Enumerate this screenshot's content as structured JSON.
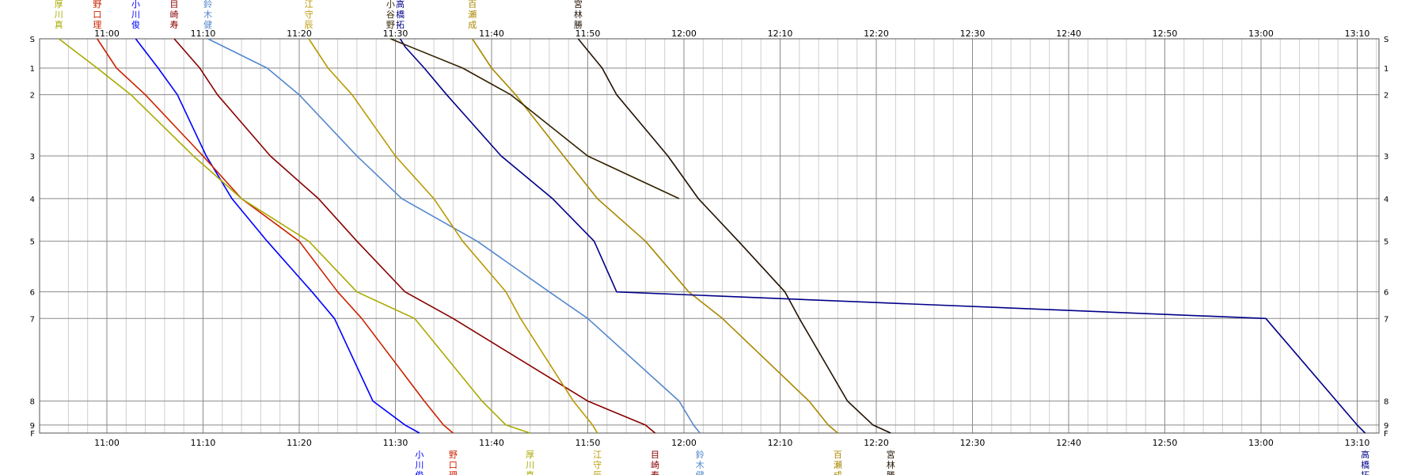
{
  "chart_data": {
    "type": "line",
    "title": "",
    "xlabel": "",
    "ylabel": "",
    "x_range": [
      "10:55",
      "13:12"
    ],
    "x_tick_labels": [
      "11:00",
      "11:10",
      "11:20",
      "11:30",
      "11:40",
      "11:50",
      "12:00",
      "12:10",
      "12:20",
      "12:30",
      "12:40",
      "12:50",
      "13:00",
      "13:10"
    ],
    "stations": [
      {
        "label": "S",
        "dist": 0
      },
      {
        "label": "1",
        "dist": 11
      },
      {
        "label": "2",
        "dist": 21
      },
      {
        "label": "3",
        "dist": 44
      },
      {
        "label": "4",
        "dist": 60
      },
      {
        "label": "5",
        "dist": 76
      },
      {
        "label": "6",
        "dist": 95
      },
      {
        "label": "7",
        "dist": 105
      },
      {
        "label": "8",
        "dist": 136
      },
      {
        "label": "9",
        "dist": 145
      },
      {
        "label": "F",
        "dist": 148
      }
    ],
    "grid": true,
    "series": [
      {
        "name": "小川俊",
        "top_name": "小川俊",
        "bottom_name": "小川俊",
        "color": "#0000ff",
        "points": [
          [
            "11:03:00",
            0
          ],
          [
            "11:05:20",
            11
          ],
          [
            "11:07:20",
            21
          ],
          [
            "11:10:20",
            44
          ],
          [
            "11:13:00",
            60
          ],
          [
            "11:16:40",
            76
          ],
          [
            "11:21:20",
            95
          ],
          [
            "11:23:40",
            105
          ],
          [
            "11:27:40",
            136
          ],
          [
            "11:31:00",
            145
          ],
          [
            "11:32:30",
            148
          ]
        ]
      },
      {
        "name": "野口理",
        "top_name": "野口理",
        "bottom_name": "野口理",
        "color": "#cc2200",
        "points": [
          [
            "10:59:00",
            0
          ],
          [
            "11:01:00",
            11
          ],
          [
            "11:04:00",
            21
          ],
          [
            "11:10:00",
            44
          ],
          [
            "11:14:00",
            60
          ],
          [
            "11:20:00",
            76
          ],
          [
            "11:24:00",
            95
          ],
          [
            "11:26:30",
            105
          ],
          [
            "11:33:00",
            136
          ],
          [
            "11:35:00",
            145
          ],
          [
            "11:36:00",
            148
          ]
        ]
      },
      {
        "name": "目崎寿",
        "top_name": "目崎寿",
        "bottom_name": "目崎寿",
        "color": "#880000",
        "points": [
          [
            "11:07:00",
            0
          ],
          [
            "11:09:40",
            11
          ],
          [
            "11:11:30",
            21
          ],
          [
            "11:17:00",
            44
          ],
          [
            "11:22:00",
            60
          ],
          [
            "11:26:00",
            76
          ],
          [
            "11:31:00",
            95
          ],
          [
            "11:36:00",
            105
          ],
          [
            "11:50:00",
            136
          ],
          [
            "11:56:00",
            145
          ],
          [
            "11:57:00",
            148
          ]
        ]
      },
      {
        "name": "鈴木健",
        "top_name": "鈴木健",
        "bottom_name": "鈴木健",
        "color": "#5588cc",
        "points": [
          [
            "11:10:30",
            0
          ],
          [
            "11:16:40",
            11
          ],
          [
            "11:20:00",
            21
          ],
          [
            "11:26:00",
            44
          ],
          [
            "11:30:40",
            60
          ],
          [
            "11:38:30",
            76
          ],
          [
            "11:46:00",
            95
          ],
          [
            "11:50:00",
            105
          ],
          [
            "11:59:30",
            136
          ],
          [
            "12:01:00",
            145
          ],
          [
            "12:01:40",
            148
          ]
        ]
      },
      {
        "name": "厚川真",
        "top_name": "厚川真",
        "bottom_name": "厚川真",
        "color": "#aaaa00",
        "points": [
          [
            "10:55:00",
            0
          ],
          [
            "10:59:00",
            11
          ],
          [
            "11:02:30",
            21
          ],
          [
            "11:09:00",
            44
          ],
          [
            "11:14:00",
            60
          ],
          [
            "11:21:00",
            76
          ],
          [
            "11:26:00",
            95
          ],
          [
            "11:32:00",
            105
          ],
          [
            "11:39:00",
            136
          ],
          [
            "11:41:30",
            145
          ],
          [
            "11:44:00",
            148
          ]
        ]
      },
      {
        "name": "江守辰",
        "top_name": "江守辰",
        "bottom_name": "江守辰",
        "color": "#bb9900",
        "points": [
          [
            "11:21:00",
            0
          ],
          [
            "11:23:00",
            11
          ],
          [
            "11:25:30",
            21
          ],
          [
            "11:30:00",
            44
          ],
          [
            "11:34:00",
            60
          ],
          [
            "11:37:00",
            76
          ],
          [
            "11:41:30",
            95
          ],
          [
            "11:43:00",
            105
          ],
          [
            "11:48:30",
            136
          ],
          [
            "11:50:30",
            145
          ],
          [
            "11:51:00",
            148
          ]
        ]
      },
      {
        "name": "百瀬成",
        "top_name": "百瀬成",
        "bottom_name": "百瀬成",
        "color": "#aa8800",
        "points": [
          [
            "11:38:00",
            0
          ],
          [
            "11:40:00",
            11
          ],
          [
            "11:42:30",
            21
          ],
          [
            "11:47:30",
            44
          ],
          [
            "11:51:00",
            60
          ],
          [
            "11:56:00",
            76
          ],
          [
            "12:00:30",
            95
          ],
          [
            "12:04:00",
            105
          ],
          [
            "12:13:00",
            136
          ],
          [
            "12:15:00",
            145
          ],
          [
            "12:16:00",
            148
          ]
        ]
      },
      {
        "name": "宮林勝",
        "top_name": "宮林勝",
        "bottom_name": "宮林勝",
        "color": "#221100",
        "points": [
          [
            "11:49:00",
            0
          ],
          [
            "11:51:30",
            11
          ],
          [
            "11:53:00",
            21
          ],
          [
            "11:58:20",
            44
          ],
          [
            "12:01:30",
            60
          ],
          [
            "12:05:40",
            76
          ],
          [
            "12:10:30",
            95
          ],
          [
            "12:12:00",
            105
          ],
          [
            "12:17:00",
            136
          ],
          [
            "12:19:40",
            145
          ],
          [
            "12:21:30",
            148
          ]
        ]
      },
      {
        "name": "高橋拓",
        "top_name": "高橋拓",
        "bottom_name": "高橋拓",
        "color": "#000088",
        "points": [
          [
            "11:30:30",
            0
          ],
          [
            "11:31:00",
            3
          ],
          [
            "11:33:00",
            11
          ],
          [
            "11:35:20",
            21
          ],
          [
            "11:41:00",
            44
          ],
          [
            "11:46:20",
            60
          ],
          [
            "11:50:40",
            76
          ],
          [
            "11:53:00",
            95
          ],
          [
            "13:00:30",
            105
          ],
          [
            "13:10:00",
            145
          ],
          [
            "13:10:50",
            148
          ]
        ]
      },
      {
        "name": "小谷野",
        "top_name": "小谷野",
        "color": "#332200",
        "points": [
          [
            "11:29:30",
            0
          ],
          [
            "11:37:00",
            11
          ],
          [
            "11:42:00",
            21
          ],
          [
            "11:50:00",
            44
          ],
          [
            "11:59:30",
            60
          ]
        ]
      }
    ]
  }
}
